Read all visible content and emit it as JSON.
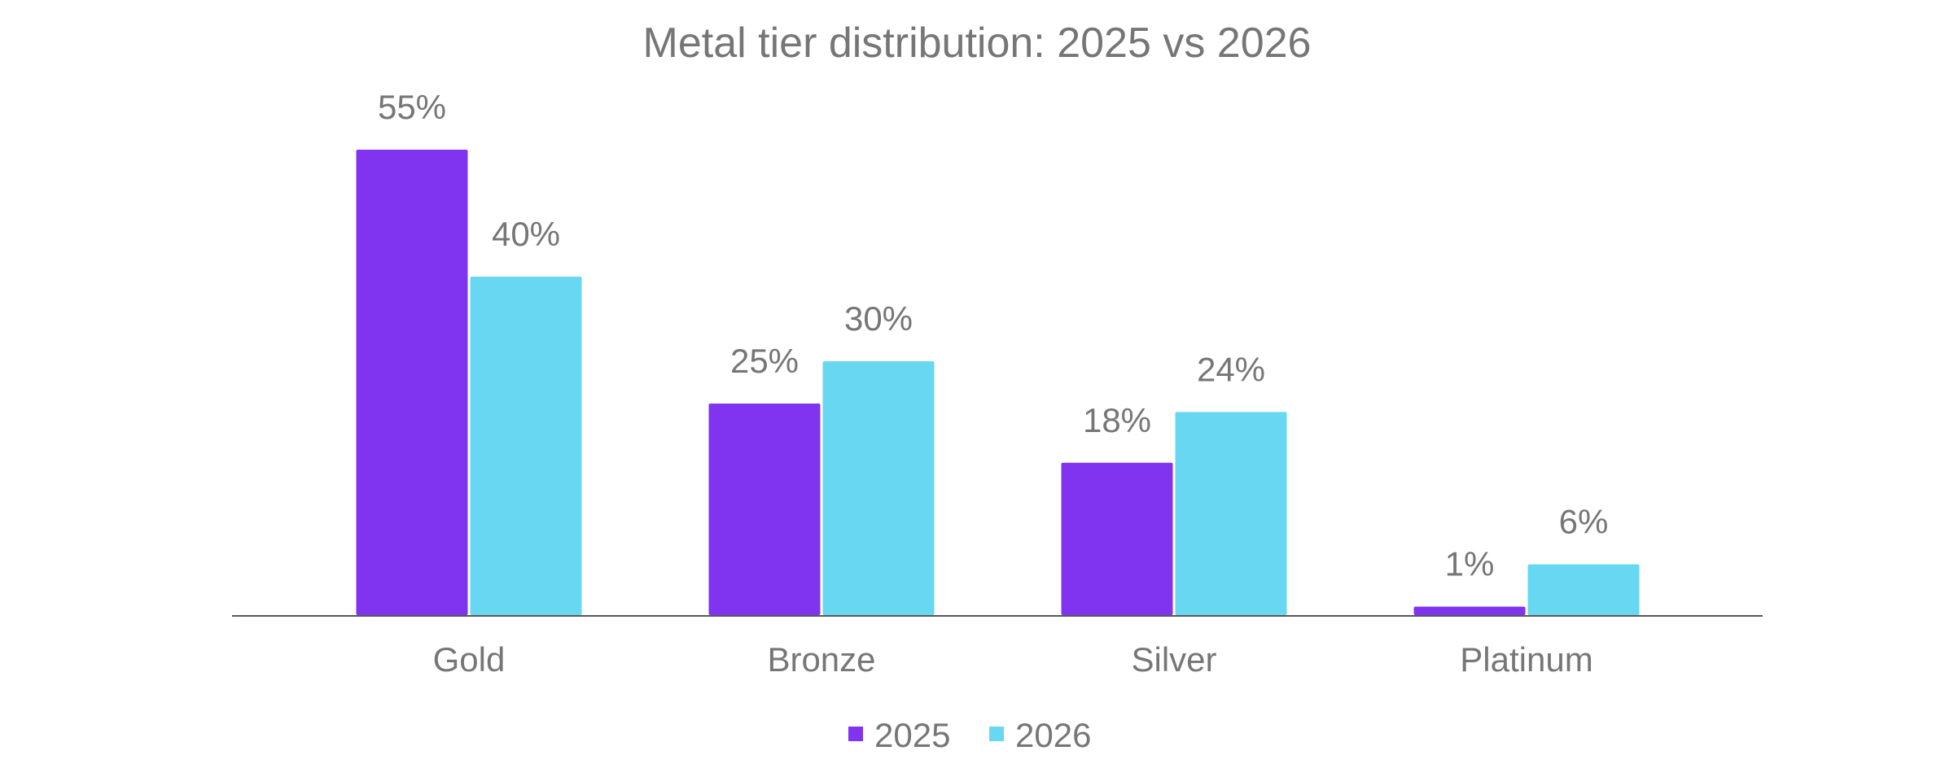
{
  "chart_data": {
    "type": "bar",
    "title": "Metal tier distribution: 2025 vs 2026",
    "categories": [
      "Gold",
      "Bronze",
      "Silver",
      "Platinum"
    ],
    "series": [
      {
        "name": "2025",
        "values": [
          55,
          25,
          18,
          1
        ],
        "labels": [
          "55%",
          "25%",
          "18%",
          "1%"
        ],
        "color": "#8134EF"
      },
      {
        "name": "2026",
        "values": [
          40,
          30,
          24,
          6
        ],
        "labels": [
          "40%",
          "30%",
          "24%",
          "6%"
        ],
        "color": "#68D7F1"
      }
    ],
    "ylim": [
      0,
      55
    ],
    "grid": false,
    "legend": "bottom",
    "text_color": "#767676"
  }
}
